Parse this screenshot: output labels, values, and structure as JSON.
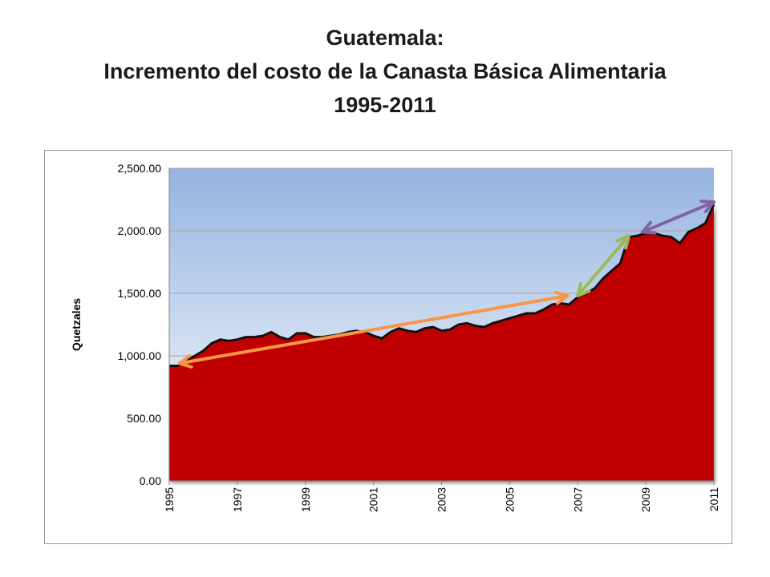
{
  "title": {
    "line1": "Guatemala:",
    "line2": "Incremento del costo de la Canasta Básica Alimentaria",
    "line3": "1995-2011"
  },
  "colors": {
    "area_fill": "#c00000",
    "line": "#111111",
    "plot_bg_top": "#95b3e0",
    "plot_bg_bottom": "#ffffff",
    "grid": "#a6a6a6",
    "arrow_orange": "#f79646",
    "arrow_green": "#9bbb59",
    "arrow_purple": "#8064a2"
  },
  "chart_data": {
    "type": "area",
    "title": "",
    "xlabel": "",
    "ylabel": "Quetzales",
    "ylim": [
      0,
      2500
    ],
    "xlim": [
      1995,
      2011
    ],
    "y_ticks": [
      "0.00",
      "500.00",
      "1,000.00",
      "1,500.00",
      "2,000.00",
      "2,500.00"
    ],
    "x_ticks": [
      "1995",
      "1997",
      "1999",
      "2001",
      "2003",
      "2005",
      "2007",
      "2009",
      "2011"
    ],
    "grid": true,
    "legend": "none",
    "series": [
      {
        "x": [
          1995.0,
          1995.25,
          1995.5,
          1995.75,
          1996.0,
          1996.25,
          1996.5,
          1996.75,
          1997.0,
          1997.25,
          1997.5,
          1997.75,
          1998.0,
          1998.25,
          1998.5,
          1998.75,
          1999.0,
          1999.25,
          1999.5,
          1999.75,
          2000.0,
          2000.25,
          2000.5,
          2000.75,
          2001.0,
          2001.25,
          2001.5,
          2001.75,
          2002.0,
          2002.25,
          2002.5,
          2002.75,
          2003.0,
          2003.25,
          2003.5,
          2003.75,
          2004.0,
          2004.25,
          2004.5,
          2004.75,
          2005.0,
          2005.25,
          2005.5,
          2005.75,
          2006.0,
          2006.25,
          2006.5,
          2006.75,
          2007.0,
          2007.25,
          2007.5,
          2007.75,
          2008.0,
          2008.25,
          2008.5,
          2008.75,
          2009.0,
          2009.25,
          2009.5,
          2009.75,
          2010.0,
          2010.25,
          2010.5,
          2010.75,
          2011.0
        ],
        "values": [
          920,
          920,
          960,
          1000,
          1040,
          1100,
          1130,
          1120,
          1130,
          1150,
          1150,
          1160,
          1190,
          1150,
          1130,
          1180,
          1180,
          1150,
          1150,
          1160,
          1170,
          1190,
          1200,
          1190,
          1160,
          1140,
          1190,
          1220,
          1200,
          1190,
          1220,
          1230,
          1200,
          1210,
          1250,
          1260,
          1240,
          1230,
          1260,
          1280,
          1300,
          1320,
          1340,
          1340,
          1370,
          1410,
          1420,
          1410,
          1470,
          1500,
          1540,
          1620,
          1680,
          1740,
          1950,
          1960,
          1980,
          1980,
          1960,
          1950,
          1900,
          1990,
          2020,
          2060,
          2210
        ]
      }
    ],
    "annotations": [
      {
        "type": "double-arrow",
        "color": "orange",
        "from": [
          1995.3,
          940
        ],
        "to": [
          2006.7,
          1480
        ]
      },
      {
        "type": "double-arrow",
        "color": "green",
        "from": [
          2007.0,
          1480
        ],
        "to": [
          2008.5,
          1960
        ]
      },
      {
        "type": "double-arrow",
        "color": "purple",
        "from": [
          2008.9,
          1990
        ],
        "to": [
          2011.0,
          2230
        ]
      }
    ]
  }
}
